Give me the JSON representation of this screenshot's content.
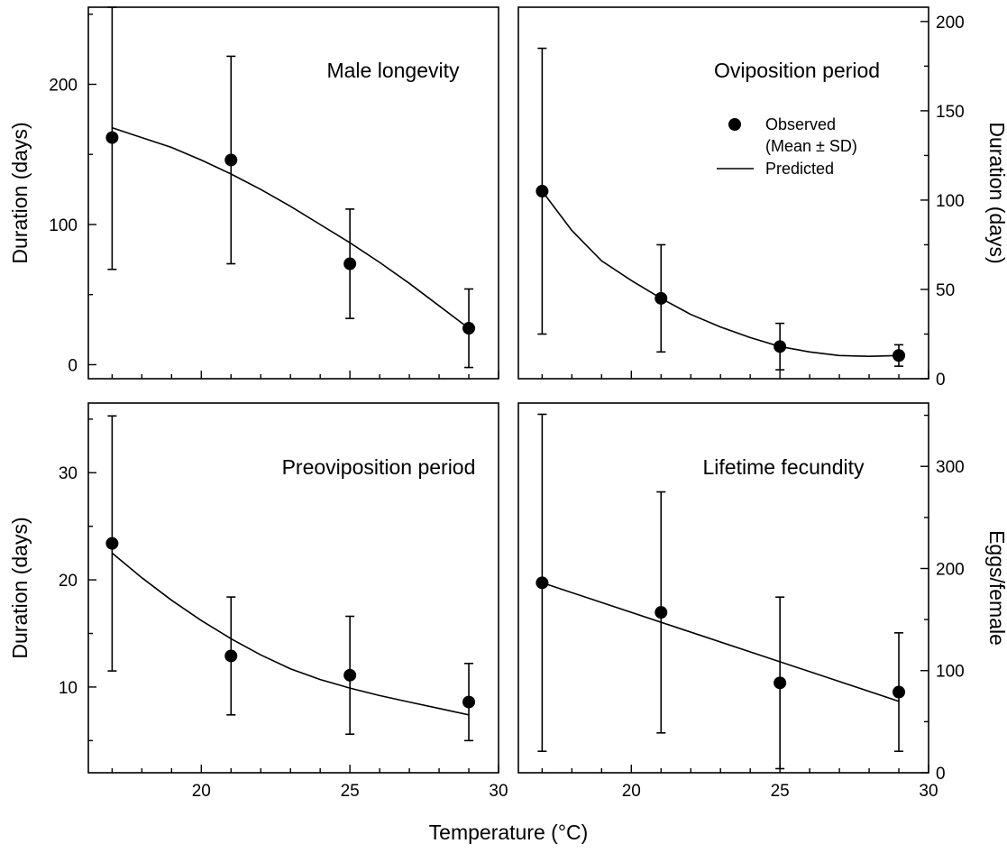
{
  "figure": {
    "xlabel": "Temperature (°C)"
  },
  "chart_data": [
    {
      "type": "scatter",
      "title": "Male longevity",
      "ylabel": "Duration (days)",
      "y_axis_side": "left",
      "xlim": [
        16.2,
        30
      ],
      "ylim": [
        -10,
        255
      ],
      "x_ticks": [
        20,
        25,
        30
      ],
      "x_tick_labels_shown": false,
      "y_ticks": [
        0,
        100,
        200
      ],
      "legend": null,
      "series": [
        {
          "name": "Observed (Mean ± SD)",
          "x": [
            17,
            21,
            25,
            29
          ],
          "y": [
            162,
            146,
            72,
            26
          ],
          "sd": [
            94,
            74,
            39,
            28
          ]
        },
        {
          "name": "Predicted",
          "kind": "line",
          "x": [
            17,
            18,
            19,
            20,
            21,
            22,
            23,
            24,
            25,
            26,
            27,
            28,
            29
          ],
          "y": [
            169,
            162,
            155,
            146,
            136,
            125,
            113,
            100,
            87,
            73,
            58,
            42,
            26
          ]
        }
      ]
    },
    {
      "type": "scatter",
      "title": "Oviposition period",
      "ylabel": "Duration (days)",
      "y_axis_side": "right",
      "xlim": [
        16.2,
        30
      ],
      "ylim": [
        0,
        208
      ],
      "x_ticks": [
        20,
        25,
        30
      ],
      "x_tick_labels_shown": false,
      "y_ticks": [
        0,
        50,
        100,
        150,
        200
      ],
      "legend": {
        "position": "top-right",
        "entries": [
          {
            "symbol": "dot",
            "label_line1": "Observed",
            "label_line2": "(Mean ± SD)"
          },
          {
            "symbol": "line",
            "label_line1": "Predicted",
            "label_line2": ""
          }
        ]
      },
      "series": [
        {
          "name": "Observed (Mean ± SD)",
          "x": [
            17,
            21,
            25,
            29
          ],
          "y": [
            105,
            45,
            18,
            13
          ],
          "sd": [
            80,
            30,
            13,
            6
          ]
        },
        {
          "name": "Predicted",
          "kind": "line",
          "x": [
            17,
            18,
            19,
            20,
            21,
            22,
            23,
            24,
            25,
            26,
            27,
            28,
            29
          ],
          "y": [
            105,
            83,
            66,
            55,
            45,
            36,
            29,
            23,
            18,
            15,
            13,
            12.5,
            13
          ]
        }
      ]
    },
    {
      "type": "scatter",
      "title": "Preoviposition period",
      "ylabel": "Duration (days)",
      "y_axis_side": "left",
      "xlim": [
        16.2,
        30
      ],
      "ylim": [
        2,
        36.5
      ],
      "x_ticks": [
        20,
        25,
        30
      ],
      "x_tick_labels_shown": true,
      "y_ticks": [
        10,
        20,
        30
      ],
      "legend": null,
      "series": [
        {
          "name": "Observed (Mean ± SD)",
          "x": [
            17,
            21,
            25,
            29
          ],
          "y": [
            23.4,
            12.9,
            11.1,
            8.6
          ],
          "sd": [
            11.9,
            5.5,
            5.5,
            3.6
          ]
        },
        {
          "name": "Predicted",
          "kind": "line",
          "x": [
            17,
            18,
            19,
            20,
            21,
            22,
            23,
            24,
            25,
            26,
            27,
            28,
            29
          ],
          "y": [
            22.5,
            20.2,
            18.1,
            16.2,
            14.5,
            13.0,
            11.7,
            10.7,
            9.9,
            9.2,
            8.6,
            8.0,
            7.4
          ]
        }
      ]
    },
    {
      "type": "scatter",
      "title": "Lifetime fecundity",
      "ylabel": "Eggs/female",
      "y_axis_side": "right",
      "xlim": [
        16.2,
        30
      ],
      "ylim": [
        0,
        362
      ],
      "x_ticks": [
        20,
        25,
        30
      ],
      "x_tick_labels_shown": true,
      "y_ticks": [
        0,
        100,
        200,
        300
      ],
      "legend": null,
      "series": [
        {
          "name": "Observed (Mean ± SD)",
          "x": [
            17,
            21,
            25,
            29
          ],
          "y": [
            186,
            157,
            88,
            79
          ],
          "sd": [
            165,
            118,
            84,
            58
          ]
        },
        {
          "name": "Predicted",
          "kind": "line",
          "x": [
            17,
            29
          ],
          "y": [
            186,
            70
          ]
        }
      ]
    }
  ]
}
